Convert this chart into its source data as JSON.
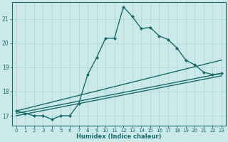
{
  "xlabel": "Humidex (Indice chaleur)",
  "bg_color": "#cce9ea",
  "grid_color": "#b0d8da",
  "line_color": "#1a6b6b",
  "xlim": [
    -0.5,
    23.5
  ],
  "ylim": [
    16.6,
    21.7
  ],
  "yticks": [
    17,
    18,
    19,
    20,
    21
  ],
  "xticks": [
    0,
    1,
    2,
    3,
    4,
    5,
    6,
    7,
    8,
    9,
    10,
    11,
    12,
    13,
    14,
    15,
    16,
    17,
    18,
    19,
    20,
    21,
    22,
    23
  ],
  "series": [
    {
      "x": [
        0,
        1,
        2,
        3,
        4,
        5,
        6,
        7,
        8,
        9,
        10,
        11,
        12,
        13,
        14,
        15,
        16,
        17,
        18,
        19,
        20,
        21,
        22,
        23
      ],
      "y": [
        17.2,
        17.1,
        17.0,
        17.0,
        16.85,
        17.0,
        17.0,
        17.5,
        18.7,
        19.4,
        20.2,
        20.2,
        21.5,
        21.1,
        20.6,
        20.65,
        20.3,
        20.15,
        19.8,
        19.3,
        19.1,
        18.8,
        18.7,
        18.75
      ],
      "marker": "D",
      "markersize": 2.0,
      "linewidth": 1.0
    },
    {
      "x": [
        0,
        23
      ],
      "y": [
        17.2,
        19.3
      ],
      "marker": null,
      "linewidth": 1.0
    },
    {
      "x": [
        0,
        23
      ],
      "y": [
        17.1,
        18.75
      ],
      "marker": null,
      "linewidth": 1.0
    },
    {
      "x": [
        0,
        23
      ],
      "y": [
        17.0,
        18.65
      ],
      "marker": null,
      "linewidth": 1.0
    }
  ]
}
